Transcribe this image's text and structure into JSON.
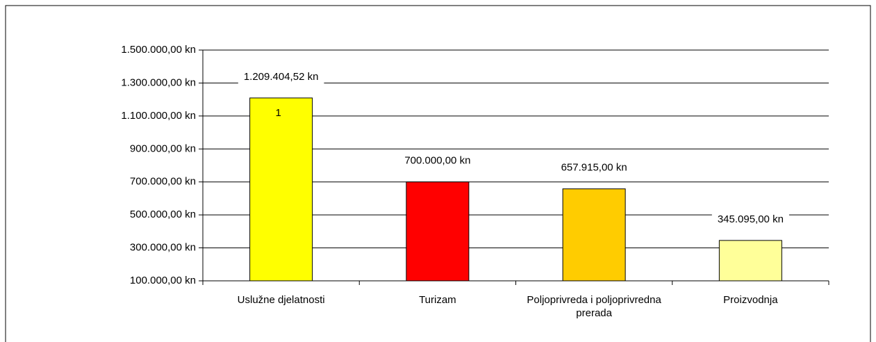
{
  "chart_data": {
    "type": "bar",
    "categories": [
      "Uslužne djelatnosti",
      "Turizam",
      "Poljoprivreda i poljoprivredna prerada",
      "Proizvodnja"
    ],
    "values": [
      1209404.52,
      700000,
      657915,
      345095
    ],
    "value_labels": [
      "1.209.404,52 kn",
      "700.000,00 kn",
      "657.915,00 kn",
      "345.095,00 kn"
    ],
    "colors": [
      "#ffff00",
      "#ff0000",
      "#ffcc00",
      "#ffff99"
    ],
    "annotation": "1",
    "ylim": [
      100000,
      1500000
    ],
    "yticks": [
      {
        "value": 100000,
        "label": "100.000,00 kn"
      },
      {
        "value": 300000,
        "label": "300.000,00 kn"
      },
      {
        "value": 500000,
        "label": "500.000,00 kn"
      },
      {
        "value": 700000,
        "label": "700.000,00 kn"
      },
      {
        "value": 900000,
        "label": "900.000,00 kn"
      },
      {
        "value": 1100000,
        "label": "1.100.000,00 kn"
      },
      {
        "value": 1300000,
        "label": "1.300.000,00 kn"
      },
      {
        "value": 1500000,
        "label": "1.500.000,00 kn"
      }
    ],
    "grid": true
  }
}
